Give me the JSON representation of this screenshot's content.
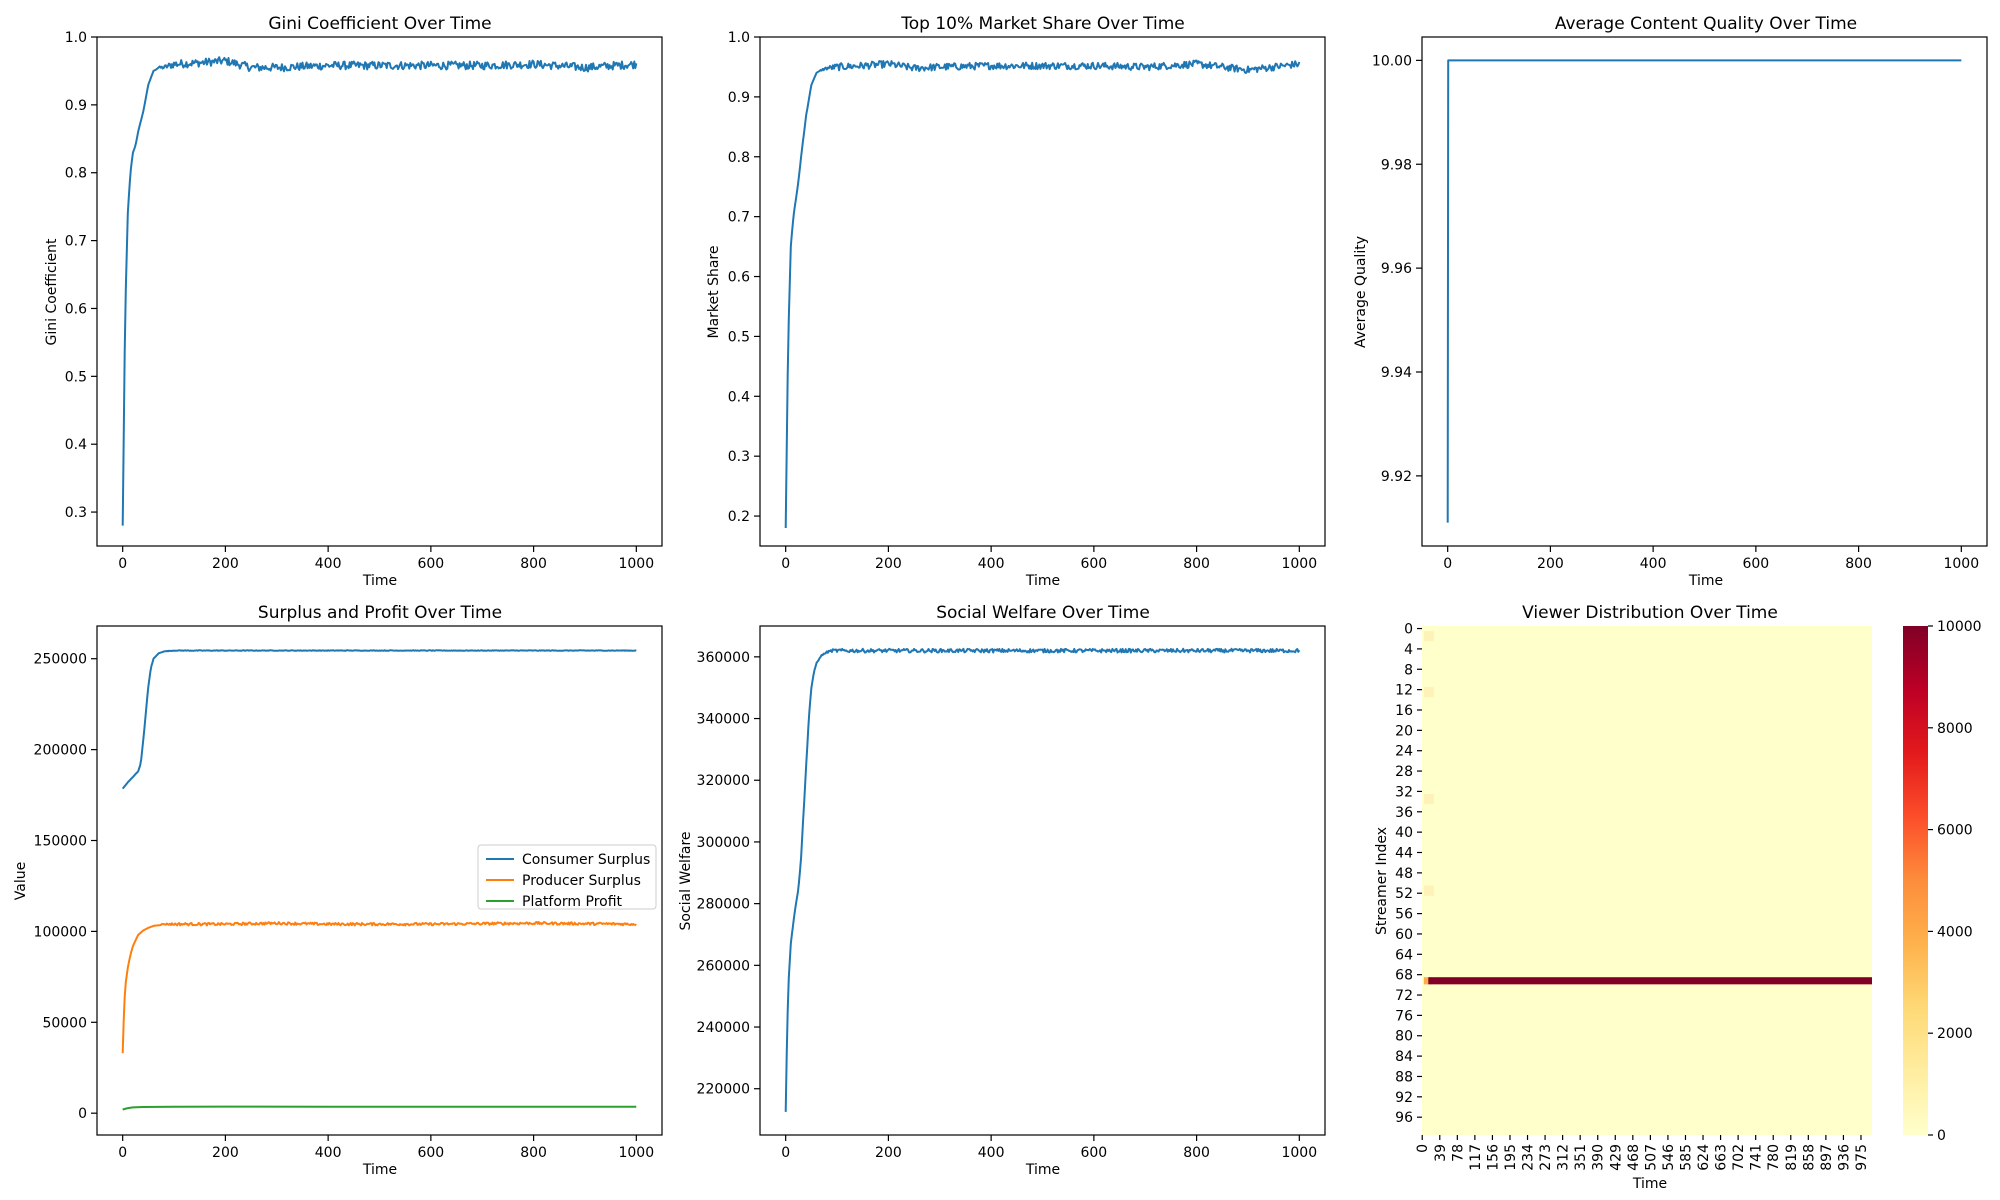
{
  "colors": {
    "blue": "#1f77b4",
    "orange": "#ff7f0e",
    "green": "#2ca02c",
    "heat_low": "#ffffcc",
    "heat_mid": "#fd8d3c",
    "heat_high": "#800026"
  },
  "chart_data": [
    {
      "id": "gini",
      "type": "line",
      "title": "Gini Coefficient Over Time",
      "xlabel": "Time",
      "ylabel": "Gini Coefficient",
      "xlim": [
        -50,
        1050
      ],
      "ylim": [
        0.25,
        1.0
      ],
      "xticks": [
        0,
        200,
        400,
        600,
        800,
        1000
      ],
      "yticks": [
        0.3,
        0.4,
        0.5,
        0.6,
        0.7,
        0.8,
        0.9,
        1.0
      ],
      "legend": "none",
      "grid": false,
      "series": [
        {
          "color": "#1f77b4",
          "x": [
            0,
            5,
            10,
            15,
            20,
            25,
            30,
            40,
            50,
            60,
            70,
            80,
            100,
            150,
            200,
            250,
            300,
            400,
            500,
            600,
            700,
            800,
            900,
            1000
          ],
          "y": [
            0.28,
            0.6,
            0.74,
            0.8,
            0.83,
            0.84,
            0.86,
            0.89,
            0.93,
            0.95,
            0.955,
            0.955,
            0.96,
            0.962,
            0.965,
            0.955,
            0.955,
            0.958,
            0.958,
            0.958,
            0.958,
            0.96,
            0.955,
            0.96
          ],
          "noise": 0.006
        }
      ]
    },
    {
      "id": "top10",
      "type": "line",
      "title": "Top 10% Market Share Over Time",
      "xlabel": "Time",
      "ylabel": "Market Share",
      "xlim": [
        -50,
        1050
      ],
      "ylim": [
        0.15,
        1.0
      ],
      "xticks": [
        0,
        200,
        400,
        600,
        800,
        1000
      ],
      "yticks": [
        0.2,
        0.3,
        0.4,
        0.5,
        0.6,
        0.7,
        0.8,
        0.9,
        1.0
      ],
      "legend": "none",
      "grid": false,
      "series": [
        {
          "color": "#1f77b4",
          "x": [
            0,
            5,
            10,
            15,
            20,
            25,
            30,
            40,
            50,
            60,
            70,
            80,
            100,
            150,
            200,
            250,
            300,
            400,
            500,
            600,
            700,
            800,
            900,
            1000
          ],
          "y": [
            0.18,
            0.5,
            0.65,
            0.7,
            0.73,
            0.76,
            0.8,
            0.87,
            0.92,
            0.94,
            0.945,
            0.948,
            0.95,
            0.952,
            0.955,
            0.948,
            0.95,
            0.952,
            0.952,
            0.952,
            0.95,
            0.955,
            0.945,
            0.955
          ],
          "noise": 0.006
        }
      ]
    },
    {
      "id": "quality",
      "type": "line",
      "title": "Average Content Quality Over Time",
      "xlabel": "Time",
      "ylabel": "Average Quality",
      "xlim": [
        -50,
        1050
      ],
      "ylim": [
        9.9065,
        10.0045
      ],
      "xticks": [
        0,
        200,
        400,
        600,
        800,
        1000
      ],
      "yticks": [
        9.92,
        9.94,
        9.96,
        9.98,
        10.0
      ],
      "ytick_format": "2",
      "legend": "none",
      "grid": false,
      "series": [
        {
          "color": "#1f77b4",
          "x": [
            0,
            1,
            1000
          ],
          "y": [
            9.911,
            10.0,
            10.0
          ],
          "noise": 0
        }
      ]
    },
    {
      "id": "surplus",
      "type": "line",
      "title": "Surplus and Profit Over Time",
      "xlabel": "Time",
      "ylabel": "Value",
      "xlim": [
        -50,
        1050
      ],
      "ylim": [
        -12000,
        268000
      ],
      "xticks": [
        0,
        200,
        400,
        600,
        800,
        1000
      ],
      "yticks": [
        0,
        50000,
        100000,
        150000,
        200000,
        250000
      ],
      "legend": "center-right",
      "grid": false,
      "series": [
        {
          "name": "Consumer Surplus",
          "color": "#1f77b4",
          "x": [
            0,
            10,
            20,
            30,
            35,
            40,
            45,
            50,
            55,
            60,
            70,
            80,
            100,
            200,
            400,
            600,
            800,
            1000
          ],
          "y": [
            178500,
            182000,
            185000,
            188000,
            192000,
            205000,
            220000,
            235000,
            245000,
            250000,
            253000,
            254000,
            254500,
            254500,
            254500,
            254500,
            254500,
            254500
          ],
          "noise": 150
        },
        {
          "name": "Producer Surplus",
          "color": "#ff7f0e",
          "x": [
            0,
            3,
            6,
            10,
            15,
            20,
            30,
            40,
            50,
            60,
            80,
            100,
            200,
            300,
            400,
            600,
            800,
            1000
          ],
          "y": [
            33000,
            60000,
            72000,
            80000,
            87000,
            92000,
            98000,
            100500,
            102000,
            103000,
            104000,
            104000,
            104000,
            104500,
            104000,
            104000,
            104500,
            104000
          ],
          "noise": 700
        },
        {
          "name": "Platform Profit",
          "color": "#2ca02c",
          "x": [
            0,
            10,
            20,
            40,
            100,
            200,
            400,
            600,
            800,
            1000
          ],
          "y": [
            2000,
            2800,
            3200,
            3400,
            3500,
            3600,
            3500,
            3500,
            3500,
            3500
          ],
          "noise": 0
        }
      ]
    },
    {
      "id": "welfare",
      "type": "line",
      "title": "Social Welfare Over Time",
      "xlabel": "Time",
      "ylabel": "Social Welfare",
      "xlim": [
        -50,
        1050
      ],
      "ylim": [
        205000,
        370000
      ],
      "xticks": [
        0,
        200,
        400,
        600,
        800,
        1000
      ],
      "yticks": [
        220000,
        240000,
        260000,
        280000,
        300000,
        320000,
        340000,
        360000
      ],
      "legend": "none",
      "grid": false,
      "series": [
        {
          "color": "#1f77b4",
          "x": [
            0,
            3,
            6,
            10,
            15,
            20,
            25,
            30,
            35,
            40,
            45,
            50,
            55,
            60,
            70,
            80,
            90,
            100,
            200,
            400,
            600,
            800,
            900,
            1000
          ],
          "y": [
            212500,
            240000,
            256000,
            267000,
            274000,
            280000,
            285000,
            295000,
            310000,
            325000,
            340000,
            350000,
            355000,
            358000,
            360500,
            361500,
            362000,
            362000,
            362000,
            362000,
            362000,
            362000,
            362000,
            362000
          ],
          "noise": 600
        }
      ]
    },
    {
      "id": "heatmap",
      "type": "heatmap",
      "title": "Viewer Distribution Over Time",
      "xlabel": "Time",
      "ylabel": "Streamer Index",
      "rows": 100,
      "cols": 1000,
      "xtick_labels": [
        "0",
        "39",
        "78",
        "117",
        "156",
        "195",
        "234",
        "273",
        "312",
        "351",
        "390",
        "429",
        "468",
        "507",
        "546",
        "585",
        "624",
        "663",
        "702",
        "741",
        "780",
        "819",
        "858",
        "897",
        "936",
        "975"
      ],
      "ytick_labels": [
        "0",
        "4",
        "8",
        "12",
        "16",
        "20",
        "24",
        "28",
        "32",
        "36",
        "40",
        "44",
        "48",
        "52",
        "56",
        "60",
        "64",
        "68",
        "72",
        "76",
        "80",
        "84",
        "88",
        "92",
        "96"
      ],
      "colorbar_ticks": [
        0,
        2000,
        4000,
        6000,
        8000,
        10000
      ],
      "vmin": 0,
      "vmax": 10000,
      "dominant_row": 69,
      "dominant_value": 10000,
      "baseline_value": 0
    }
  ]
}
